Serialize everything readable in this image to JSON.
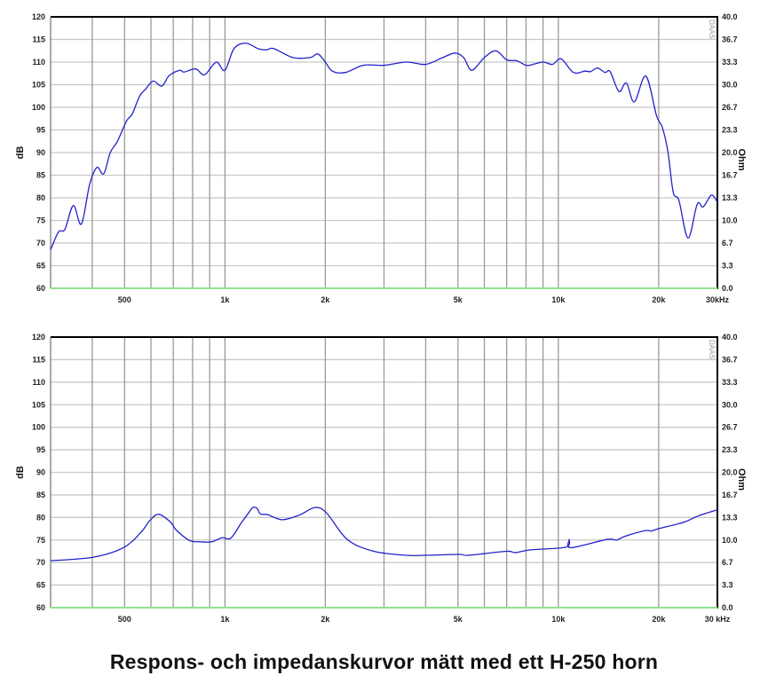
{
  "caption": "Respons- och impedanskurvor mätt med ett H-250 horn",
  "colors": {
    "curve": "#2222cc",
    "grid": "#9a9a9a",
    "hgrid": "#c8c8c8",
    "baseline": "#90e090",
    "frame": "#000000"
  },
  "chart_data": [
    {
      "type": "line",
      "xscale": "log",
      "xlim": [
        300,
        30000
      ],
      "ylim": [
        60,
        120
      ],
      "y2lim": [
        0,
        40
      ],
      "ylabel": "dB",
      "y2label": "Ohm",
      "watermark": "DAAS",
      "grid": true,
      "xticks": [
        "500",
        "1k",
        "2k",
        "5k",
        "10k",
        "20k",
        "30kHz"
      ],
      "yticks": [
        "120",
        "115",
        "110",
        "105",
        "100",
        "95",
        "90",
        "85",
        "80",
        "75",
        "70",
        "65",
        "60"
      ],
      "y2ticks": [
        "40.0",
        "36.7",
        "33.3",
        "30.0",
        "26.7",
        "23.3",
        "20.0",
        "16.7",
        "13.3",
        "10.0",
        "6.7",
        "3.3",
        "0.0"
      ],
      "series": [
        {
          "x": [
            300,
            317,
            331,
            351,
            371,
            393,
            413,
            433,
            453,
            476,
            507,
            527,
            555,
            578,
            609,
            647,
            680,
            731,
            754,
            817,
            869,
            942,
            1000,
            1065,
            1155,
            1254,
            1332,
            1400,
            1600,
            1800,
            1900,
            2000,
            2100,
            2300,
            2600,
            3000,
            3500,
            4000,
            4500,
            4900,
            5200,
            5500,
            6000,
            6500,
            7000,
            7500,
            8000,
            8300,
            9000,
            9600,
            10200,
            11100,
            12000,
            12500,
            13100,
            13800,
            14300,
            15200,
            16000,
            16900,
            18300,
            19700,
            20500,
            21300,
            22100,
            23000,
            24500,
            26100,
            27200,
            28800,
            30000
          ],
          "y": [
            68.5,
            72.5,
            73,
            78.3,
            74.2,
            83,
            86.7,
            85.3,
            90,
            92.5,
            97,
            98.5,
            102.5,
            104,
            105.8,
            104.7,
            107,
            108.2,
            107.8,
            108.5,
            107.2,
            110,
            108.2,
            113,
            114.2,
            113,
            112.7,
            113,
            111,
            111,
            111.8,
            110,
            108,
            107.7,
            109.3,
            109.3,
            110,
            109.5,
            111,
            112,
            111,
            108.2,
            111,
            112.5,
            110.5,
            110.3,
            109.3,
            109.4,
            110,
            109.5,
            110.7,
            107.7,
            108,
            107.9,
            108.7,
            107.7,
            107.9,
            103.5,
            105.4,
            101.2,
            106.9,
            98.2,
            95.6,
            90.4,
            81.3,
            79.4,
            71.1,
            78.6,
            78,
            80.6,
            79
          ]
        }
      ]
    },
    {
      "type": "line",
      "xscale": "log",
      "xlim": [
        300,
        30000
      ],
      "ylim": [
        60,
        120
      ],
      "y2lim": [
        0,
        40
      ],
      "ylabel": "dB",
      "y2label": "Ohm",
      "watermark": "DAAS",
      "grid": true,
      "xticks": [
        "500",
        "1k",
        "2k",
        "5k",
        "10k",
        "20k",
        "30 kHz"
      ],
      "yticks": [
        "120",
        "115",
        "110",
        "105",
        "100",
        "95",
        "90",
        "85",
        "80",
        "75",
        "70",
        "65",
        "60"
      ],
      "y2ticks": [
        "40.0",
        "36.7",
        "33.3",
        "30.0",
        "26.7",
        "23.3",
        "20.0",
        "16.7",
        "13.3",
        "10.0",
        "6.7",
        "3.3",
        "0.0"
      ],
      "series": [
        {
          "x": [
            300,
            404,
            496,
            560,
            595,
            633,
            686,
            715,
            783,
            841,
            912,
            980,
            1041,
            1118,
            1177,
            1213,
            1250,
            1277,
            1344,
            1487,
            1681,
            1861,
            2018,
            2329,
            2797,
            3497,
            3956,
            5046,
            5364,
            6980,
            7420,
            8226,
            10520,
            10780,
            10900,
            13940,
            14970,
            15800,
            18250,
            19000,
            20200,
            23700,
            26200,
            30000
          ],
          "y": [
            70.4,
            71.2,
            73.3,
            76.7,
            79.3,
            80.7,
            79,
            77.2,
            74.9,
            74.6,
            74.6,
            75.5,
            75.4,
            78.7,
            81,
            82.2,
            82,
            80.8,
            80.6,
            79.5,
            80.6,
            82.2,
            81,
            75.1,
            72.5,
            71.6,
            71.6,
            71.8,
            71.6,
            72.5,
            72.2,
            72.8,
            73.4,
            75.1,
            73.3,
            75.1,
            75,
            75.8,
            77.1,
            77,
            77.6,
            78.9,
            80.3,
            81.7
          ]
        }
      ]
    }
  ]
}
